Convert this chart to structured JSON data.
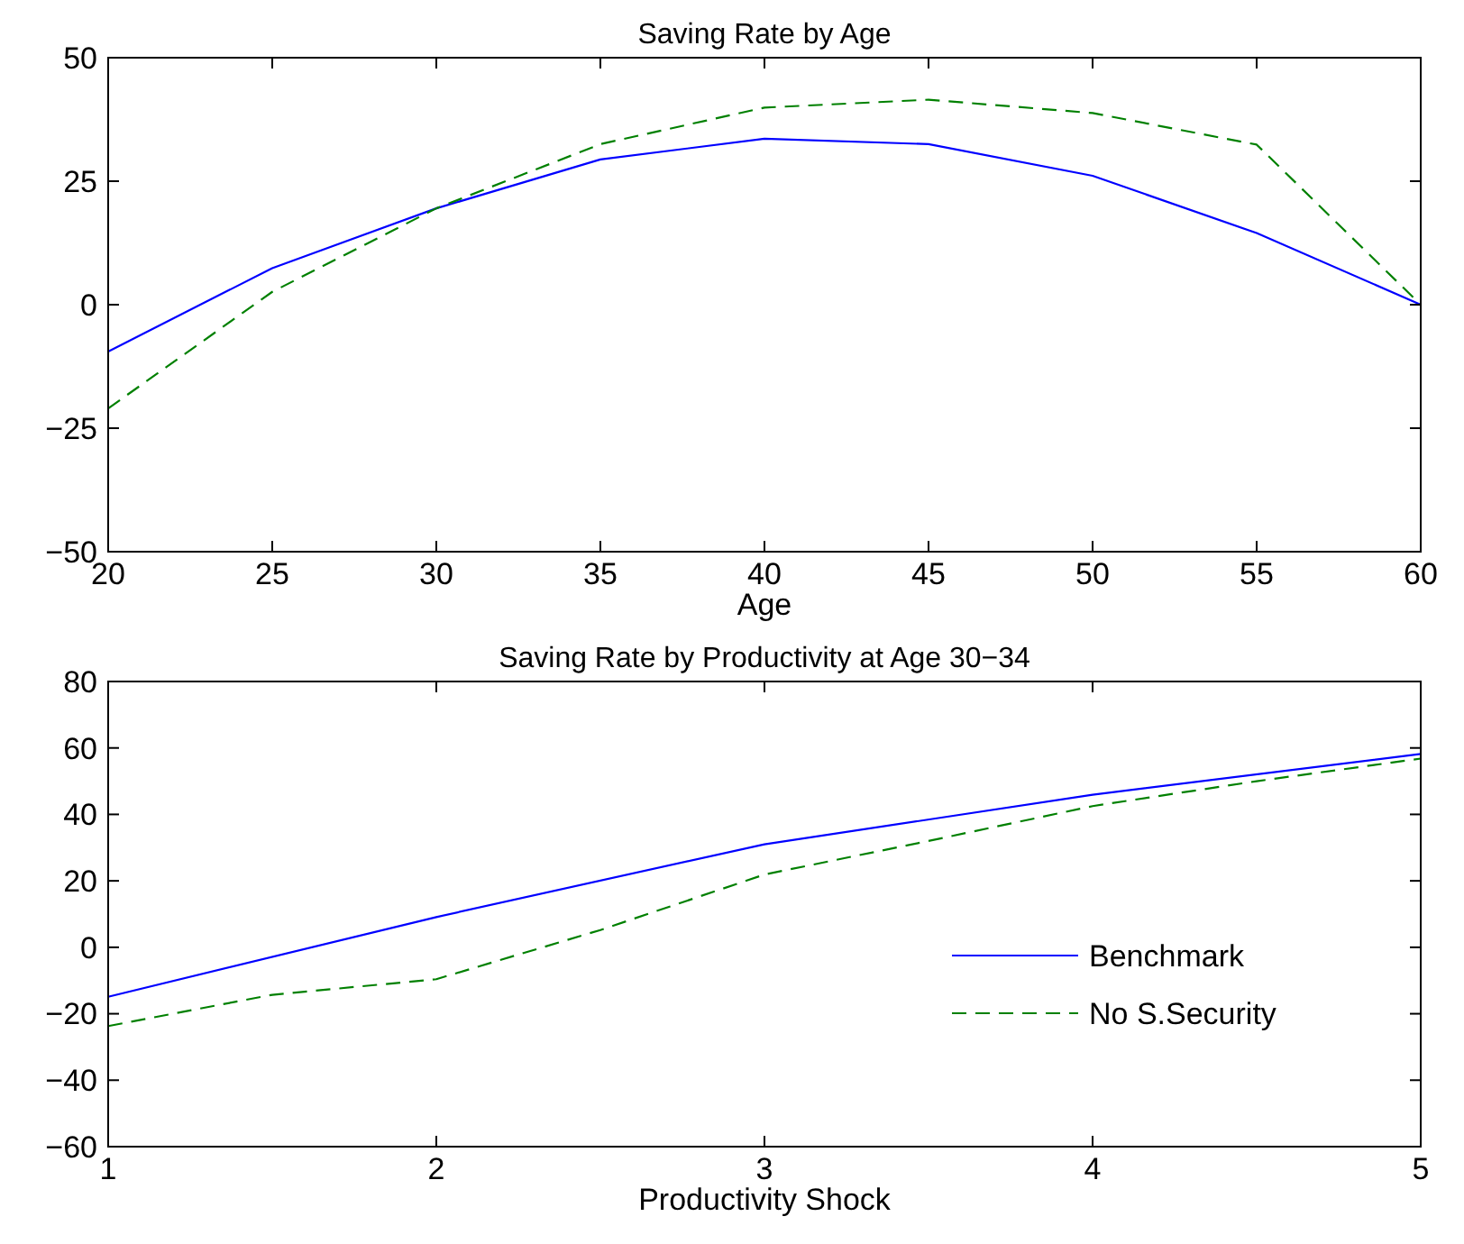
{
  "chart_data": [
    {
      "type": "line",
      "title": "Saving Rate by Age",
      "xlabel": "Age",
      "xlim": [
        20,
        60
      ],
      "xticks": [
        20,
        25,
        30,
        35,
        40,
        45,
        50,
        55,
        60
      ],
      "ylim": [
        -50,
        50
      ],
      "yticks": [
        -50,
        -25,
        0,
        25,
        50
      ],
      "grid": false,
      "legend": false,
      "marker": "none",
      "series": [
        {
          "color": "#0000ff",
          "line_style": "solid",
          "x": [
            20,
            25,
            30,
            35,
            40,
            45,
            50,
            55,
            60
          ],
          "values": [
            -9.5,
            7.4,
            19.5,
            29.4,
            33.6,
            32.5,
            26.1,
            14.5,
            0
          ]
        },
        {
          "color": "#008000",
          "line_style": "dashed",
          "x": [
            20,
            25,
            30,
            35,
            40,
            45,
            50,
            55,
            60
          ],
          "values": [
            -21,
            2.6,
            19.5,
            32.5,
            39.9,
            41.5,
            38.8,
            32.4,
            0
          ]
        }
      ]
    },
    {
      "type": "line",
      "title": "Saving Rate by Productivity at Age 30−34",
      "xlabel": "Productivity Shock",
      "xlim": [
        1,
        5
      ],
      "xticks": [
        1,
        2,
        3,
        4,
        5
      ],
      "ylim": [
        -60,
        80
      ],
      "yticks": [
        -60,
        -40,
        -20,
        0,
        20,
        40,
        60,
        80
      ],
      "grid": false,
      "legend": "bottom right",
      "marker": "none",
      "series": [
        {
          "name": "Benchmark",
          "color": "#0000ff",
          "line_style": "solid",
          "x": [
            1,
            2,
            3,
            4,
            5
          ],
          "values": [
            -14.9,
            9.1,
            31,
            45.9,
            58.2
          ]
        },
        {
          "name": "No S.Security",
          "color": "#008000",
          "line_style": "dashed",
          "x": [
            1,
            1.5,
            2,
            2.5,
            3,
            3.5,
            4,
            4.5,
            5
          ],
          "values": [
            -23.7,
            -14.3,
            -9.6,
            5.2,
            21.9,
            32,
            42.5,
            50,
            56.8
          ]
        }
      ]
    }
  ]
}
